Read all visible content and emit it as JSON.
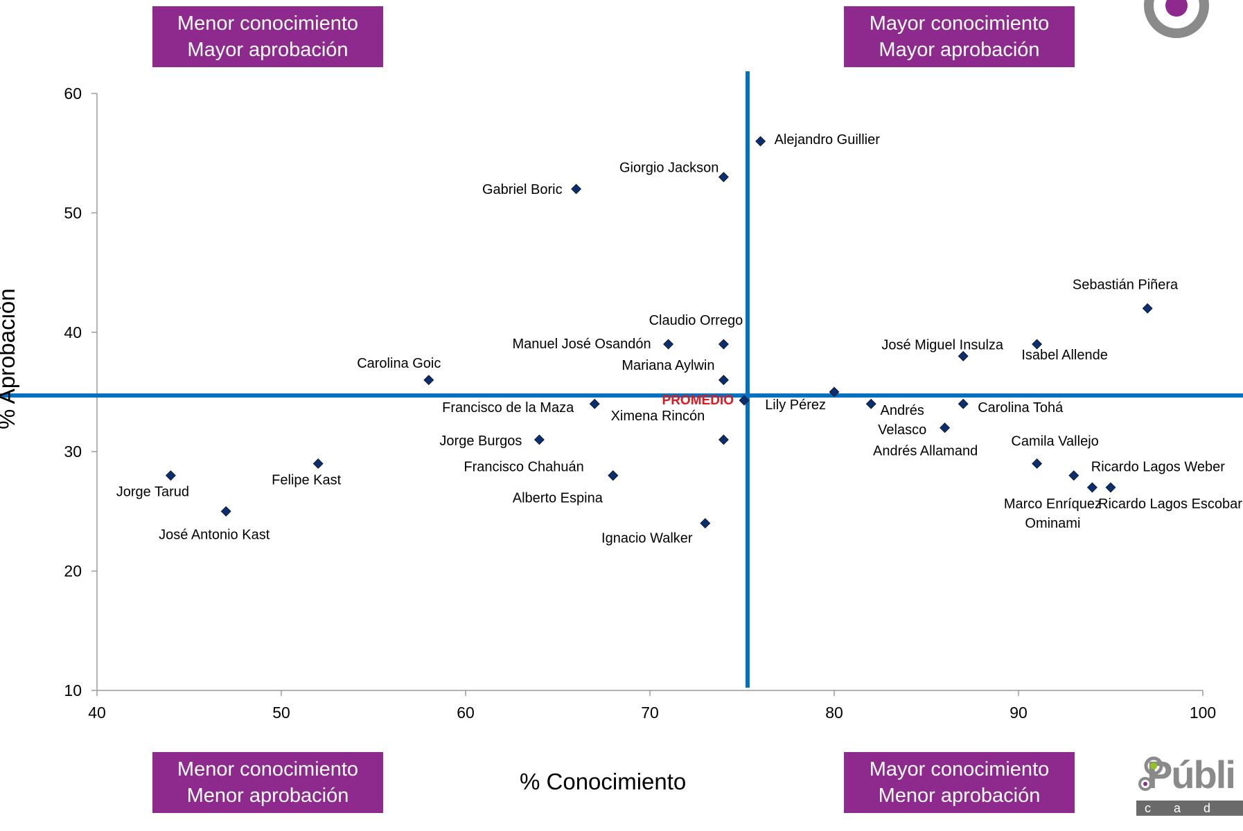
{
  "quadrants": {
    "top_left": [
      "Menor conocimiento",
      "Mayor aprobación"
    ],
    "top_right": [
      "Mayor conocimiento",
      "Mayor aprobación"
    ],
    "bottom_left": [
      "Menor conocimiento",
      "Menor aprobación"
    ],
    "bottom_right": [
      "Mayor conocimiento",
      "Menor aprobación"
    ]
  },
  "brand": {
    "logo_text": "Públi",
    "logo_sub": "c a d e",
    "accent": "#8e2a8e",
    "line_color": "#0070c0",
    "marker_color": "#0b2e6e",
    "average_color": "#e0181e"
  },
  "chart_data": {
    "type": "scatter",
    "xlabel": "% Conocimiento",
    "ylabel": "% Aprobación",
    "xlim": [
      40,
      100
    ],
    "ylim": [
      10,
      60
    ],
    "xticks": [
      40,
      50,
      60,
      70,
      80,
      90,
      100
    ],
    "yticks": [
      10,
      20,
      30,
      40,
      50,
      60
    ],
    "average": {
      "label": "PROMEDIO",
      "x": 75.3,
      "y": 34.7
    },
    "points": [
      {
        "name": "Alejandro Guillier",
        "x": 76,
        "y": 56
      },
      {
        "name": "Giorgio Jackson",
        "x": 74,
        "y": 53
      },
      {
        "name": "Gabriel Boric",
        "x": 66,
        "y": 52
      },
      {
        "name": "Sebastián Piñera",
        "x": 97,
        "y": 42
      },
      {
        "name": "Claudio Orrego",
        "x": 74,
        "y": 39
      },
      {
        "name": "Manuel José Osandón",
        "x": 71,
        "y": 39
      },
      {
        "name": "José Miguel Insulza",
        "x": 87,
        "y": 38
      },
      {
        "name": "Isabel Allende",
        "x": 91,
        "y": 39
      },
      {
        "name": "Carolina Goic",
        "x": 58,
        "y": 36
      },
      {
        "name": "Mariana Aylwin",
        "x": 74,
        "y": 36
      },
      {
        "name": "Lily Pérez",
        "x": 80,
        "y": 35
      },
      {
        "name": "Francisco de la Maza",
        "x": 67,
        "y": 34
      },
      {
        "name": "Ximena Rincón",
        "x": 74,
        "y": 31
      },
      {
        "name": "Andrés Velasco",
        "x": 82,
        "y": 34
      },
      {
        "name": "Carolina Tohá",
        "x": 87,
        "y": 34
      },
      {
        "name": "Andrés Allamand",
        "x": 86,
        "y": 32
      },
      {
        "name": "Jorge Burgos",
        "x": 64,
        "y": 31
      },
      {
        "name": "Camila Vallejo",
        "x": 91,
        "y": 29
      },
      {
        "name": "Francisco Chahuán",
        "x": 68,
        "y": 28
      },
      {
        "name": "Ricardo Lagos Weber",
        "x": 93,
        "y": 28
      },
      {
        "name": "Marco Enríquez Ominami",
        "x": 94,
        "y": 27
      },
      {
        "name": "Ricardo Lagos Escobar",
        "x": 95,
        "y": 27
      },
      {
        "name": "Alberto Espina",
        "x": 68,
        "y": 28
      },
      {
        "name": "Felipe Kast",
        "x": 52,
        "y": 29
      },
      {
        "name": "Jorge Tarud",
        "x": 44,
        "y": 28
      },
      {
        "name": "José Antonio Kast",
        "x": 47,
        "y": 25
      },
      {
        "name": "Ignacio Walker",
        "x": 73,
        "y": 24
      }
    ]
  }
}
